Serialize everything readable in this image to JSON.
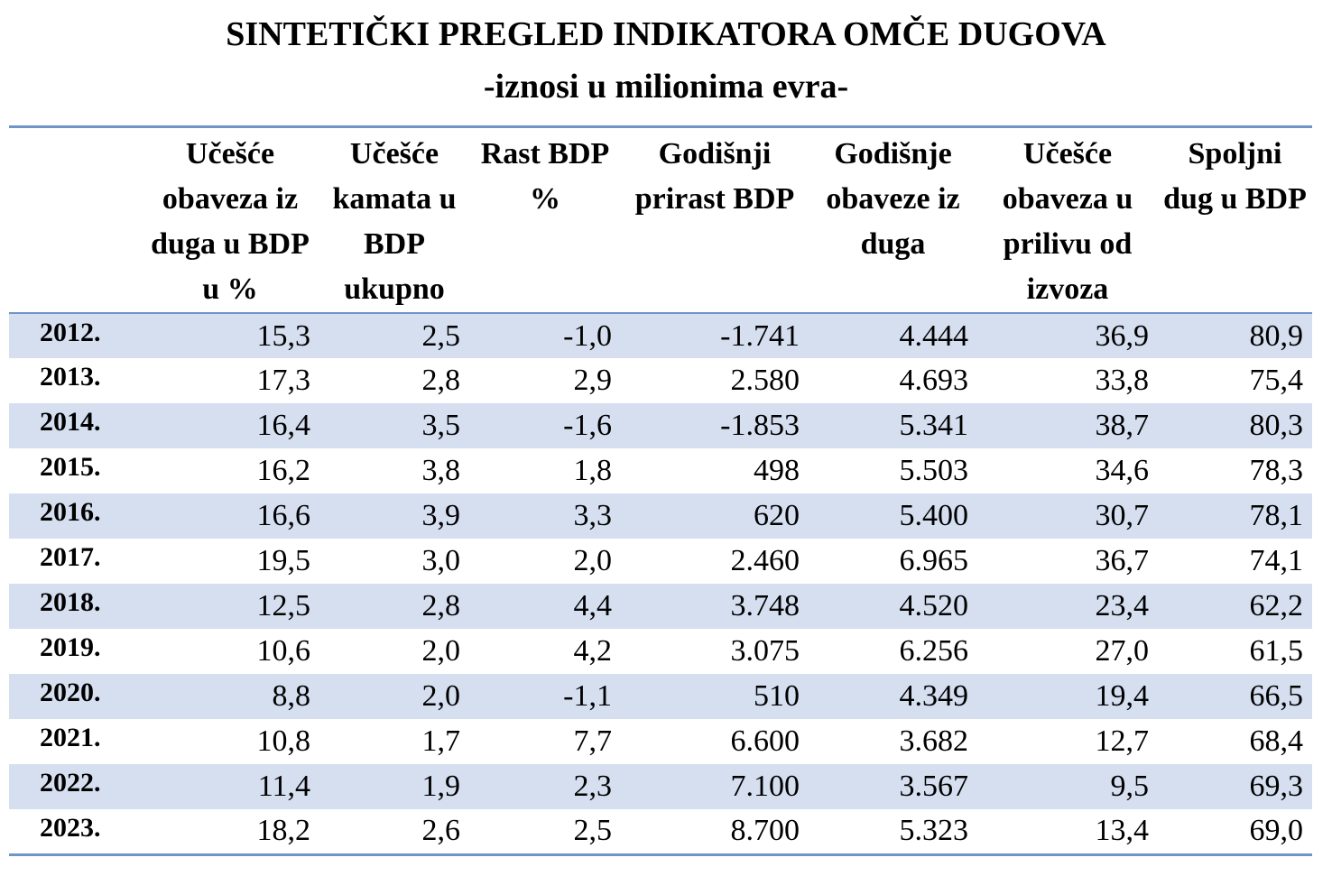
{
  "title": "SINTETIČKI PREGLED INDIKATORA OMČE DUGOVA",
  "subtitle": "-iznosi u milionima evra-",
  "columns": [
    "",
    "Učešće obaveza iz duga u BDP u %",
    "Učešće kamata u BDP ukupno",
    "Rast BDP %",
    "Godišnji prirast BDP",
    "Godišnje obaveze iz duga",
    "Učešće obaveza u prilivu od izvoza",
    "Spoljni dug u BDP"
  ],
  "rows": [
    [
      "2012.",
      "15,3",
      "2,5",
      "-1,0",
      "-1.741",
      "4.444",
      "36,9",
      "80,9"
    ],
    [
      "2013.",
      "17,3",
      "2,8",
      "2,9",
      "2.580",
      "4.693",
      "33,8",
      "75,4"
    ],
    [
      "2014.",
      "16,4",
      "3,5",
      "-1,6",
      "-1.853",
      "5.341",
      "38,7",
      "80,3"
    ],
    [
      "2015.",
      "16,2",
      "3,8",
      "1,8",
      "498",
      "5.503",
      "34,6",
      "78,3"
    ],
    [
      "2016.",
      "16,6",
      "3,9",
      "3,3",
      "620",
      "5.400",
      "30,7",
      "78,1"
    ],
    [
      "2017.",
      "19,5",
      "3,0",
      "2,0",
      "2.460",
      "6.965",
      "36,7",
      "74,1"
    ],
    [
      "2018.",
      "12,5",
      "2,8",
      "4,4",
      "3.748",
      "4.520",
      "23,4",
      "62,2"
    ],
    [
      "2019.",
      "10,6",
      "2,0",
      "4,2",
      "3.075",
      "6.256",
      "27,0",
      "61,5"
    ],
    [
      "2020.",
      "8,8",
      "2,0",
      "-1,1",
      "510",
      "4.349",
      "19,4",
      "66,5"
    ],
    [
      "2021.",
      "10,8",
      "1,7",
      "7,7",
      "6.600",
      "3.682",
      "12,7",
      "68,4"
    ],
    [
      "2022.",
      "11,4",
      "1,9",
      "2,3",
      "7.100",
      "3.567",
      "9,5",
      "69,3"
    ],
    [
      "2023.",
      "18,2",
      "2,6",
      "2,5",
      "8.700",
      "5.323",
      "13,4",
      "69,0"
    ]
  ],
  "colors": {
    "rule": "#6f95c7",
    "shade": "#d5dff0"
  }
}
